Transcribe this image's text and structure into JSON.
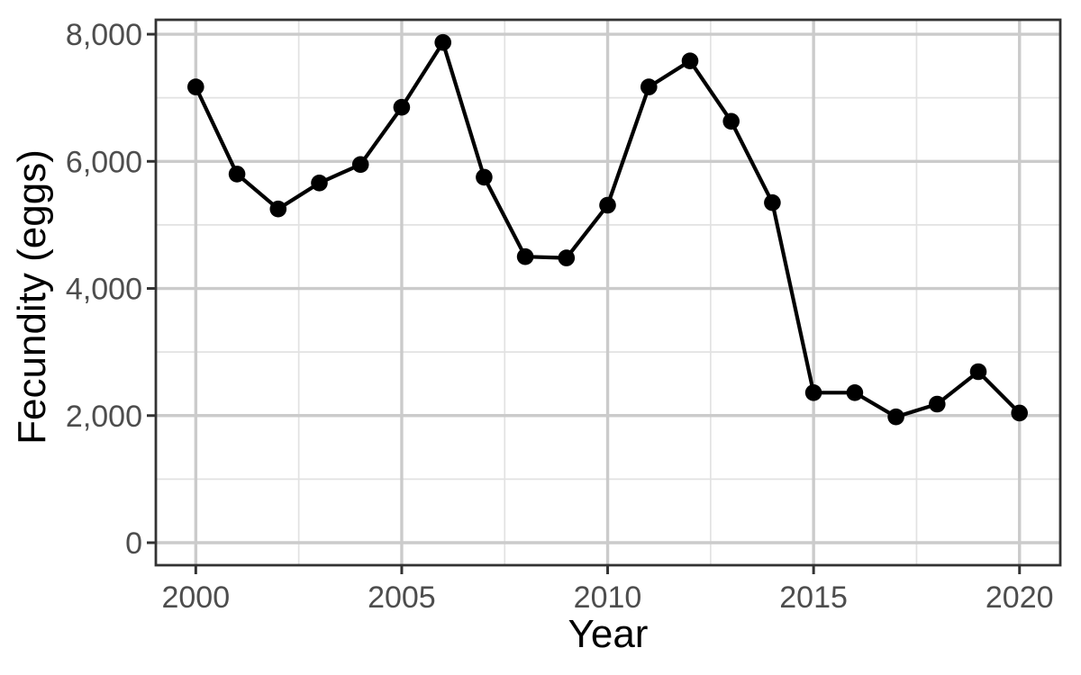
{
  "chart_data": {
    "type": "line",
    "title": "",
    "xlabel": "Year",
    "ylabel": "Fecundity (eggs)",
    "series": [
      {
        "name": "Fecundity",
        "x": [
          2000,
          2001,
          2002,
          2003,
          2004,
          2005,
          2006,
          2007,
          2008,
          2009,
          2010,
          2011,
          2012,
          2013,
          2014,
          2015,
          2016,
          2017,
          2018,
          2019,
          2020
        ],
        "values": [
          7170,
          5800,
          5250,
          5660,
          5950,
          6850,
          7870,
          5750,
          4500,
          4480,
          5310,
          7170,
          7580,
          6630,
          5350,
          2360,
          2360,
          1980,
          2180,
          2690,
          2040
        ]
      }
    ],
    "x_ticks": [
      2000,
      2005,
      2010,
      2015,
      2020
    ],
    "x_tick_labels": [
      "2000",
      "2005",
      "2010",
      "2015",
      "2020"
    ],
    "y_ticks": [
      0,
      2000,
      4000,
      6000,
      8000
    ],
    "y_tick_labels": [
      "0",
      "2,000",
      "4,000",
      "6,000",
      "8,000"
    ],
    "x_minor_ticks": [
      2002.5,
      2007.5,
      2012.5,
      2017.5
    ],
    "y_minor_ticks": [
      1000,
      3000,
      5000,
      7000
    ],
    "xlim": [
      1999.03,
      2020.99
    ],
    "ylim": [
      -354,
      8227
    ],
    "grid": "major-and-minor",
    "legend_position": "none",
    "marker": "filled-circle",
    "style": {
      "line_color": "#000000",
      "point_color": "#000000",
      "grid_major_color": "#CBCBCB",
      "grid_minor_color": "#E2E2E2",
      "panel_background": "#FFFFFF",
      "panel_border_color": "#333333",
      "tick_color": "#333333",
      "axis_text_color": "#4D4D4D",
      "axis_title_color": "#000000"
    }
  }
}
